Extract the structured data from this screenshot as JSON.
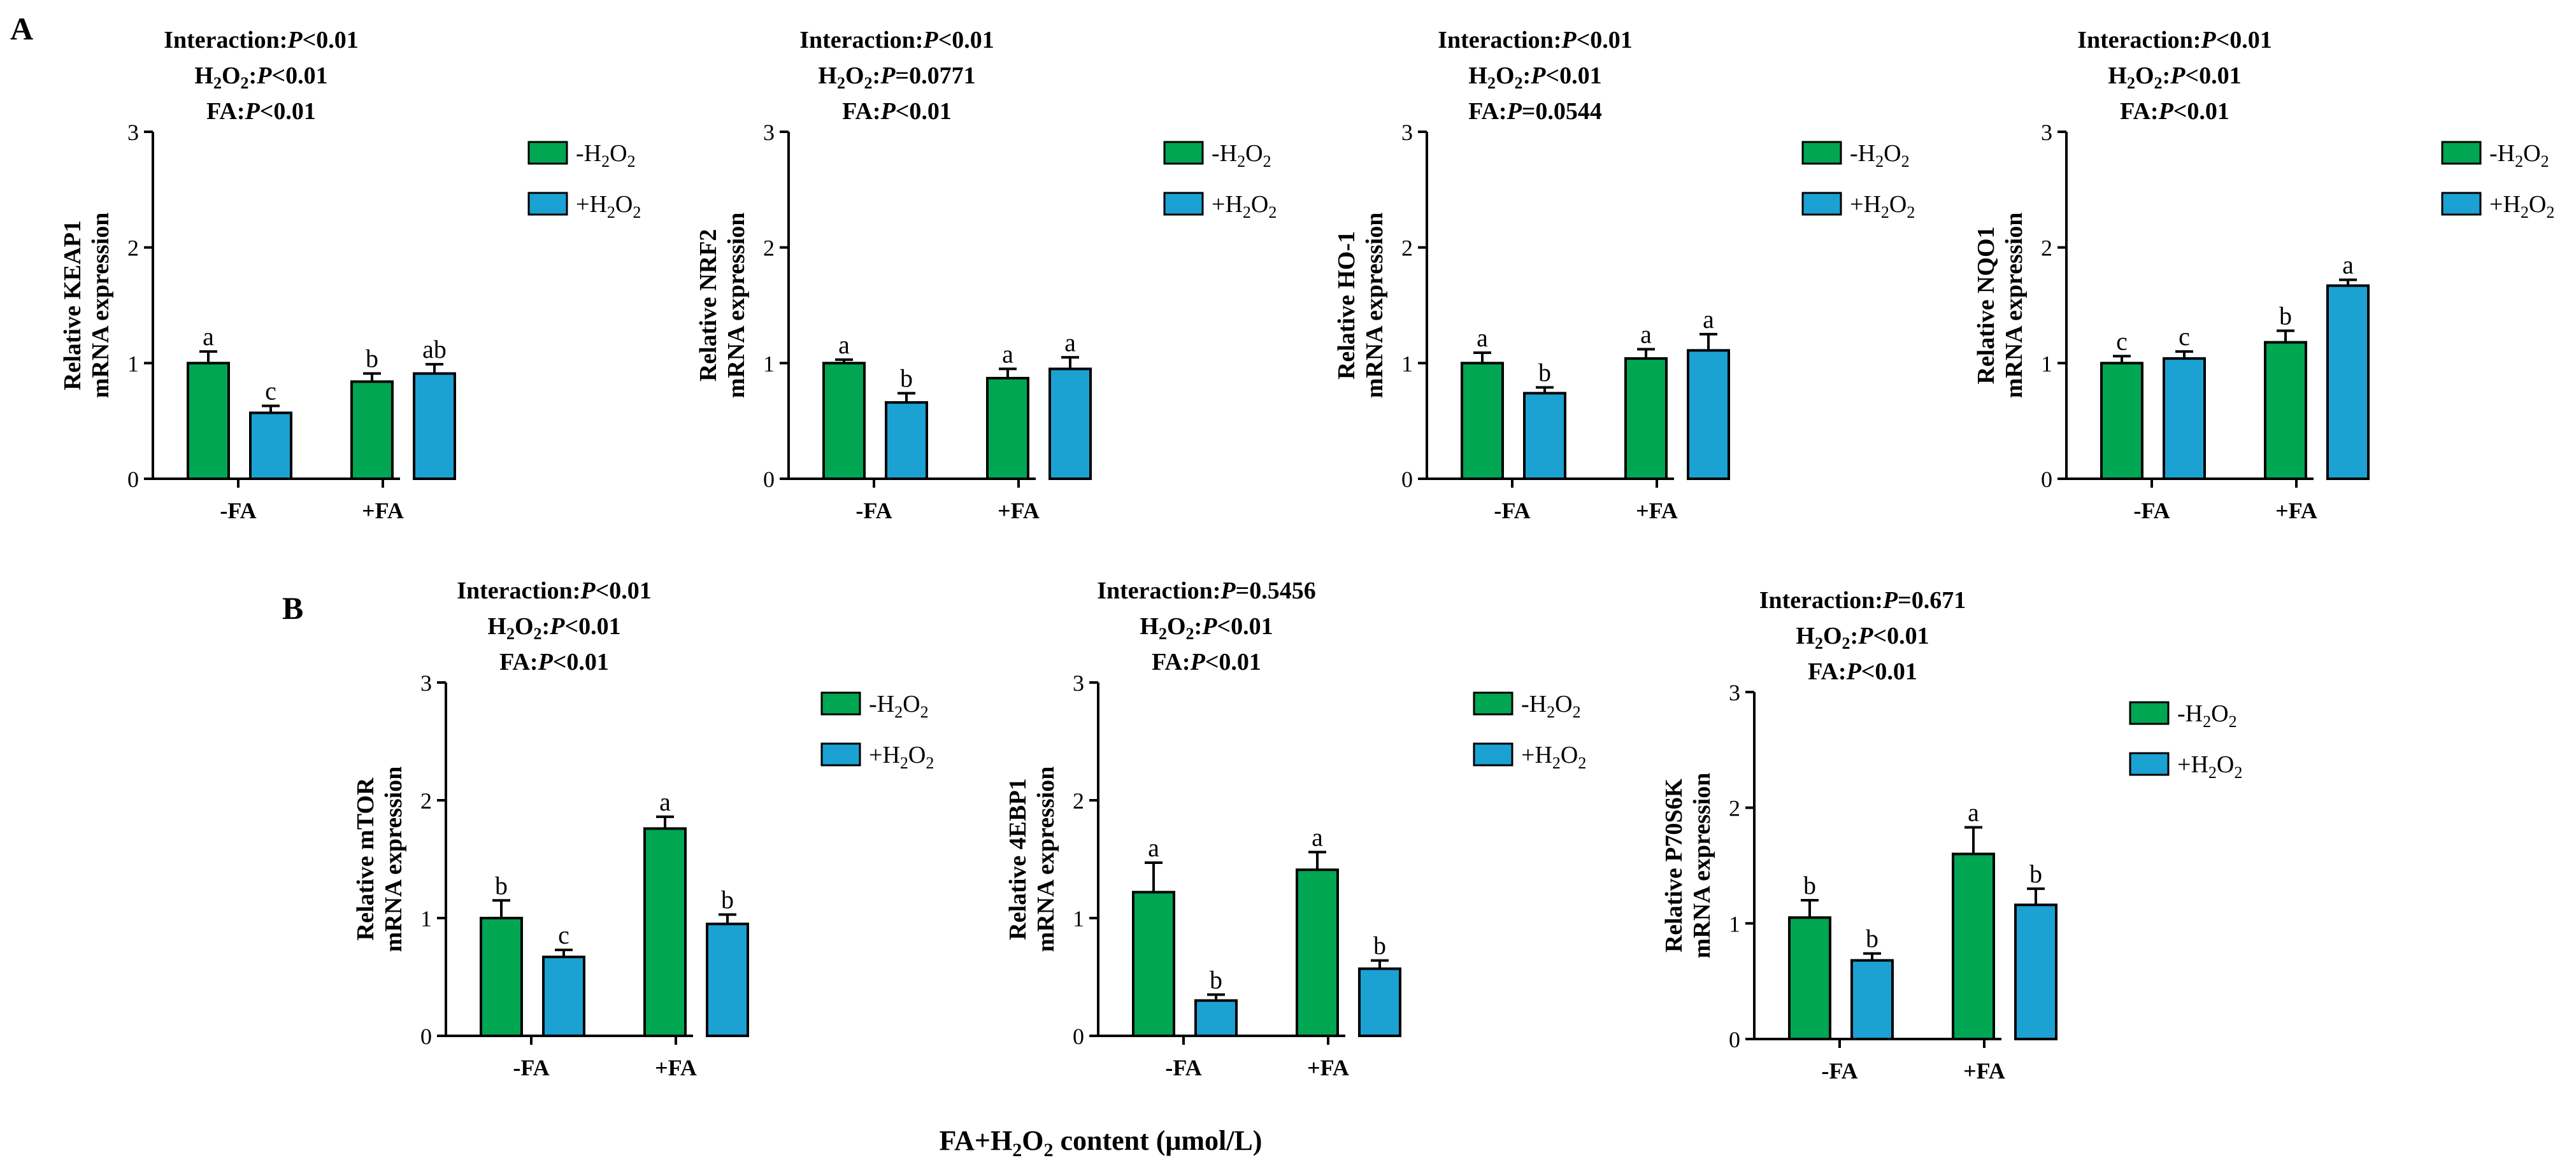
{
  "figure": {
    "panel_labels": [
      "A",
      "B"
    ],
    "xlabel": {
      "prefix": "FA+H",
      "sub": "2",
      "mid": "O",
      "sub2": "2",
      "suffix": " content (μmol/L)"
    }
  },
  "colors": {
    "minus_h2o2": "#00A651",
    "plus_h2o2": "#1BA1D2",
    "axis": "#000000"
  },
  "legend": {
    "minus": {
      "sign": "-",
      "h": "H",
      "sub1": "2",
      "o": "O",
      "sub2": "2"
    },
    "plus": {
      "sign": "+",
      "h": "H",
      "sub1": "2",
      "o": "O",
      "sub2": "2"
    }
  },
  "chart_data": [
    {
      "type": "bar",
      "panel": "A",
      "gene": "KEAP1",
      "ylabel_line1": "Relative KEAP1",
      "ylabel_line2": "mRNA expression",
      "stats": {
        "interaction": "P<0.01",
        "h2o2": "P<0.01",
        "fa": "P<0.01"
      },
      "categories": [
        "-FA",
        "+FA"
      ],
      "yticks": [
        "0",
        "1",
        "2",
        "3"
      ],
      "ylim": [
        0,
        3
      ],
      "series": [
        {
          "name": "-H2O2",
          "values": [
            1.0,
            0.84
          ],
          "errors": [
            0.1,
            0.07
          ],
          "letters": [
            "a",
            "b"
          ]
        },
        {
          "name": "+H2O2",
          "values": [
            0.57,
            0.91
          ],
          "errors": [
            0.06,
            0.08
          ],
          "letters": [
            "c",
            "ab"
          ]
        }
      ]
    },
    {
      "type": "bar",
      "panel": "A",
      "gene": "NRF2",
      "ylabel_line1": "Relative NRF2",
      "ylabel_line2": "mRNA expression",
      "stats": {
        "interaction": "P<0.01",
        "h2o2": "P=0.0771",
        "fa": "P<0.01"
      },
      "categories": [
        "-FA",
        "+FA"
      ],
      "yticks": [
        "0",
        "1",
        "2",
        "3"
      ],
      "ylim": [
        0,
        3
      ],
      "series": [
        {
          "name": "-H2O2",
          "values": [
            1.0,
            0.87
          ],
          "errors": [
            0.03,
            0.08
          ],
          "letters": [
            "a",
            "a"
          ]
        },
        {
          "name": "+H2O2",
          "values": [
            0.66,
            0.95
          ],
          "errors": [
            0.08,
            0.1
          ],
          "letters": [
            "b",
            "a"
          ]
        }
      ]
    },
    {
      "type": "bar",
      "panel": "A",
      "gene": "HO-1",
      "ylabel_line1": "Relative HO-1",
      "ylabel_line2": "mRNA expression",
      "stats": {
        "interaction": "P<0.01",
        "h2o2": "P<0.01",
        "fa": "P=0.0544"
      },
      "categories": [
        "-FA",
        "+FA"
      ],
      "yticks": [
        "0",
        "1",
        "2",
        "3"
      ],
      "ylim": [
        0,
        3
      ],
      "series": [
        {
          "name": "-H2O2",
          "values": [
            1.0,
            1.04
          ],
          "errors": [
            0.09,
            0.08
          ],
          "letters": [
            "a",
            "a"
          ]
        },
        {
          "name": "+H2O2",
          "values": [
            0.74,
            1.11
          ],
          "errors": [
            0.05,
            0.14
          ],
          "letters": [
            "b",
            "a"
          ]
        }
      ]
    },
    {
      "type": "bar",
      "panel": "A",
      "gene": "NQO1",
      "ylabel_line1": "Relative NQO1",
      "ylabel_line2": "mRNA expression",
      "stats": {
        "interaction": "P<0.01",
        "h2o2": "P<0.01",
        "fa": "P<0.01"
      },
      "categories": [
        "-FA",
        "+FA"
      ],
      "yticks": [
        "0",
        "1",
        "2",
        "3"
      ],
      "ylim": [
        0,
        3
      ],
      "series": [
        {
          "name": "-H2O2",
          "values": [
            1.0,
            1.18
          ],
          "errors": [
            0.06,
            0.1
          ],
          "letters": [
            "c",
            "b"
          ]
        },
        {
          "name": "+H2O2",
          "values": [
            1.04,
            1.67
          ],
          "errors": [
            0.06,
            0.05
          ],
          "letters": [
            "c",
            "a"
          ]
        }
      ]
    },
    {
      "type": "bar",
      "panel": "B",
      "gene": "mTOR",
      "ylabel_line1": "Relative mTOR",
      "ylabel_line2": "mRNA expression",
      "stats": {
        "interaction": "P<0.01",
        "h2o2": "P<0.01",
        "fa": "P<0.01"
      },
      "categories": [
        "-FA",
        "+FA"
      ],
      "yticks": [
        "0",
        "1",
        "2",
        "3"
      ],
      "ylim": [
        0,
        3
      ],
      "series": [
        {
          "name": "-H2O2",
          "values": [
            1.0,
            1.76
          ],
          "errors": [
            0.15,
            0.1
          ],
          "letters": [
            "b",
            "a"
          ]
        },
        {
          "name": "+H2O2",
          "values": [
            0.67,
            0.95
          ],
          "errors": [
            0.06,
            0.08
          ],
          "letters": [
            "c",
            "b"
          ]
        }
      ]
    },
    {
      "type": "bar",
      "panel": "B",
      "gene": "4EBP1",
      "ylabel_line1": "Relative 4EBP1",
      "ylabel_line2": "mRNA expression",
      "stats": {
        "interaction": "P=0.5456",
        "h2o2": "P<0.01",
        "fa": "P<0.01"
      },
      "categories": [
        "-FA",
        "+FA"
      ],
      "yticks": [
        "0",
        "1",
        "2",
        "3"
      ],
      "ylim": [
        0,
        3
      ],
      "series": [
        {
          "name": "-H2O2",
          "values": [
            1.22,
            1.41
          ],
          "errors": [
            0.25,
            0.15
          ],
          "letters": [
            "a",
            "a"
          ]
        },
        {
          "name": "+H2O2",
          "values": [
            0.3,
            0.57
          ],
          "errors": [
            0.05,
            0.07
          ],
          "letters": [
            "b",
            "b"
          ]
        }
      ]
    },
    {
      "type": "bar",
      "panel": "B",
      "gene": "P70S6K",
      "ylabel_line1": "Relative P70S6K",
      "ylabel_line2": "mRNA expression",
      "stats": {
        "interaction": "P=0.671",
        "h2o2": "P<0.01",
        "fa": "P<0.01"
      },
      "categories": [
        "-FA",
        "+FA"
      ],
      "yticks": [
        "0",
        "1",
        "2",
        "3"
      ],
      "ylim": [
        0,
        3
      ],
      "series": [
        {
          "name": "-H2O2",
          "values": [
            1.05,
            1.6
          ],
          "errors": [
            0.15,
            0.23
          ],
          "letters": [
            "b",
            "a"
          ]
        },
        {
          "name": "+H2O2",
          "values": [
            0.68,
            1.16
          ],
          "errors": [
            0.06,
            0.14
          ],
          "letters": [
            "b",
            "b"
          ]
        }
      ]
    }
  ]
}
